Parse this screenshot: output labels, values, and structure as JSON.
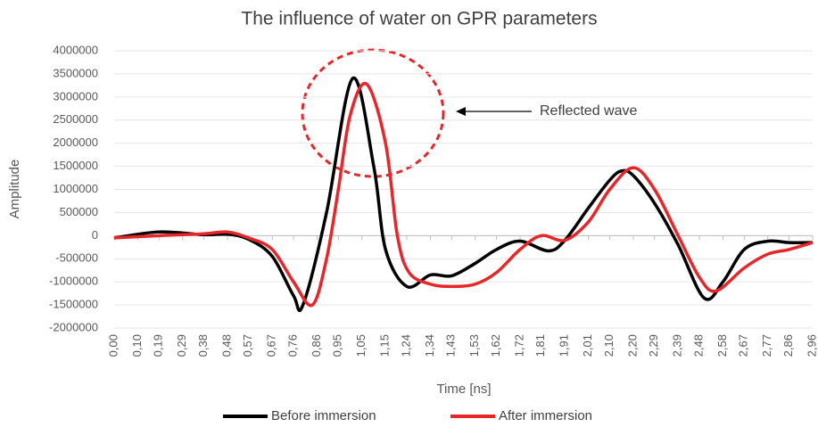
{
  "chart_data": {
    "type": "line",
    "title": "The influence of water on GPR parameters",
    "x_label": "Time [ns]",
    "y_label": "Amplitude",
    "annotation": "Reflected wave",
    "xlim": [
      0,
      2.96
    ],
    "ylim": [
      -2000000,
      4000000
    ],
    "grid": true,
    "legend": "bottom",
    "xticks": [
      {
        "value": 0,
        "label": "0,00"
      },
      {
        "value": 0.1,
        "label": "0,10"
      },
      {
        "value": 0.19,
        "label": "0,19"
      },
      {
        "value": 0.29,
        "label": "0,29"
      },
      {
        "value": 0.38,
        "label": "0,38"
      },
      {
        "value": 0.48,
        "label": "0,48"
      },
      {
        "value": 0.57,
        "label": "0,57"
      },
      {
        "value": 0.67,
        "label": "0,67"
      },
      {
        "value": 0.76,
        "label": "0,76"
      },
      {
        "value": 0.86,
        "label": "0,86"
      },
      {
        "value": 0.95,
        "label": "0,95"
      },
      {
        "value": 1.05,
        "label": "1,05"
      },
      {
        "value": 1.15,
        "label": "1,15"
      },
      {
        "value": 1.24,
        "label": "1,24"
      },
      {
        "value": 1.34,
        "label": "1,34"
      },
      {
        "value": 1.43,
        "label": "1,43"
      },
      {
        "value": 1.53,
        "label": "1,53"
      },
      {
        "value": 1.62,
        "label": "1,62"
      },
      {
        "value": 1.72,
        "label": "1,72"
      },
      {
        "value": 1.81,
        "label": "1,81"
      },
      {
        "value": 1.91,
        "label": "1,91"
      },
      {
        "value": 2.01,
        "label": "2,01"
      },
      {
        "value": 2.1,
        "label": "2,10"
      },
      {
        "value": 2.2,
        "label": "2,20"
      },
      {
        "value": 2.29,
        "label": "2,29"
      },
      {
        "value": 2.39,
        "label": "2,39"
      },
      {
        "value": 2.48,
        "label": "2,48"
      },
      {
        "value": 2.58,
        "label": "2,58"
      },
      {
        "value": 2.67,
        "label": "2,67"
      },
      {
        "value": 2.77,
        "label": "2,77"
      },
      {
        "value": 2.86,
        "label": "2,86"
      },
      {
        "value": 2.96,
        "label": "2,96"
      }
    ],
    "yticks": [
      4000000,
      3500000,
      3000000,
      2500000,
      2000000,
      1500000,
      1000000,
      500000,
      0,
      -500000,
      -1000000,
      -1500000,
      -2000000
    ],
    "series": [
      {
        "name": "Before immersion",
        "color": "#000000",
        "x": [
          0,
          0.19,
          0.38,
          0.48,
          0.57,
          0.67,
          0.76,
          0.8,
          0.9,
          1.01,
          1.1,
          1.15,
          1.24,
          1.34,
          1.43,
          1.53,
          1.62,
          1.72,
          1.84,
          1.91,
          2.01,
          2.1,
          2.15,
          2.2,
          2.29,
          2.39,
          2.5,
          2.58,
          2.67,
          2.77,
          2.86,
          2.96
        ],
        "values": [
          -50000,
          80000,
          20000,
          30000,
          -80000,
          -450000,
          -1300000,
          -1500000,
          500000,
          3400000,
          1500000,
          -300000,
          -1100000,
          -850000,
          -870000,
          -600000,
          -300000,
          -120000,
          -330000,
          -100000,
          600000,
          1200000,
          1400000,
          1300000,
          700000,
          -200000,
          -1350000,
          -1000000,
          -300000,
          -120000,
          -150000,
          -150000
        ]
      },
      {
        "name": "After immersion",
        "color": "#e8262a",
        "x": [
          0,
          0.19,
          0.38,
          0.48,
          0.57,
          0.67,
          0.76,
          0.84,
          0.9,
          0.95,
          1.0,
          1.07,
          1.15,
          1.2,
          1.25,
          1.34,
          1.43,
          1.53,
          1.62,
          1.72,
          1.81,
          1.91,
          2.01,
          2.1,
          2.2,
          2.29,
          2.39,
          2.48,
          2.55,
          2.67,
          2.77,
          2.86,
          2.96
        ],
        "values": [
          -50000,
          0,
          40000,
          80000,
          -50000,
          -300000,
          -1000000,
          -1500000,
          -500000,
          1000000,
          2600000,
          3280000,
          2000000,
          0,
          -800000,
          -1050000,
          -1100000,
          -1050000,
          -800000,
          -300000,
          0,
          -100000,
          300000,
          1000000,
          1470000,
          1000000,
          0,
          -900000,
          -1200000,
          -700000,
          -400000,
          -300000,
          -150000
        ]
      }
    ]
  }
}
